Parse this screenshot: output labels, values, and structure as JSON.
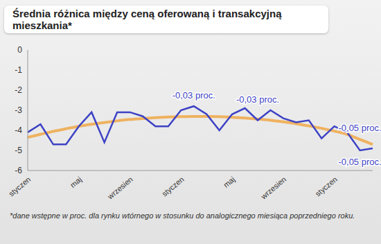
{
  "chart_data": {
    "type": "line",
    "title": "Średnia różnica między ceną oferowaną i transakcyjną mieszkania*",
    "footnote": "*dane wstępne w proc. dla rynku wtórnego w stosunku do analogicznego miesiąca poprzedniego roku.",
    "categories": [
      "styczen",
      null,
      null,
      null,
      "maj",
      null,
      null,
      null,
      "wrzesien",
      null,
      null,
      null,
      "styczen",
      null,
      null,
      null,
      "maj",
      null,
      null,
      null,
      "wrzesien",
      null,
      null,
      null,
      "styczen",
      null,
      null,
      null
    ],
    "series": [
      {
        "color": "#3d42c4",
        "values": [
          -4.1,
          -3.7,
          -4.7,
          -4.7,
          -3.8,
          -3.1,
          -4.6,
          -3.1,
          -3.1,
          -3.3,
          -3.8,
          -3.8,
          -3.0,
          -2.8,
          -3.2,
          -4.0,
          -3.2,
          -2.9,
          -3.5,
          -3.0,
          -3.4,
          -3.6,
          -3.5,
          -4.4,
          -3.8,
          -4.1,
          -5.0,
          -4.9
        ]
      },
      {
        "color": "#f0a848",
        "values": [
          -4.35,
          -4.2,
          -4.05,
          -3.92,
          -3.8,
          -3.7,
          -3.61,
          -3.53,
          -3.46,
          -3.41,
          -3.37,
          -3.34,
          -3.32,
          -3.31,
          -3.31,
          -3.32,
          -3.35,
          -3.39,
          -3.44,
          -3.5,
          -3.58,
          -3.67,
          -3.78,
          -3.9,
          -4.04,
          -4.2,
          -4.45,
          -4.7
        ]
      }
    ],
    "ylim": [
      -6,
      0
    ],
    "yticks": [
      -6,
      -5,
      -4,
      -3,
      -2,
      -1,
      0
    ],
    "annotations": [
      {
        "text": "-0,03 proc.",
        "x": 13,
        "y": -2.3
      },
      {
        "text": "-0,03 proc.",
        "x": 18,
        "y": -2.5
      },
      {
        "text": "-0,05 proc.",
        "x": 26,
        "y": -3.9
      },
      {
        "text": "-0,05 proc.",
        "x": 26,
        "y": -5.6
      }
    ]
  }
}
